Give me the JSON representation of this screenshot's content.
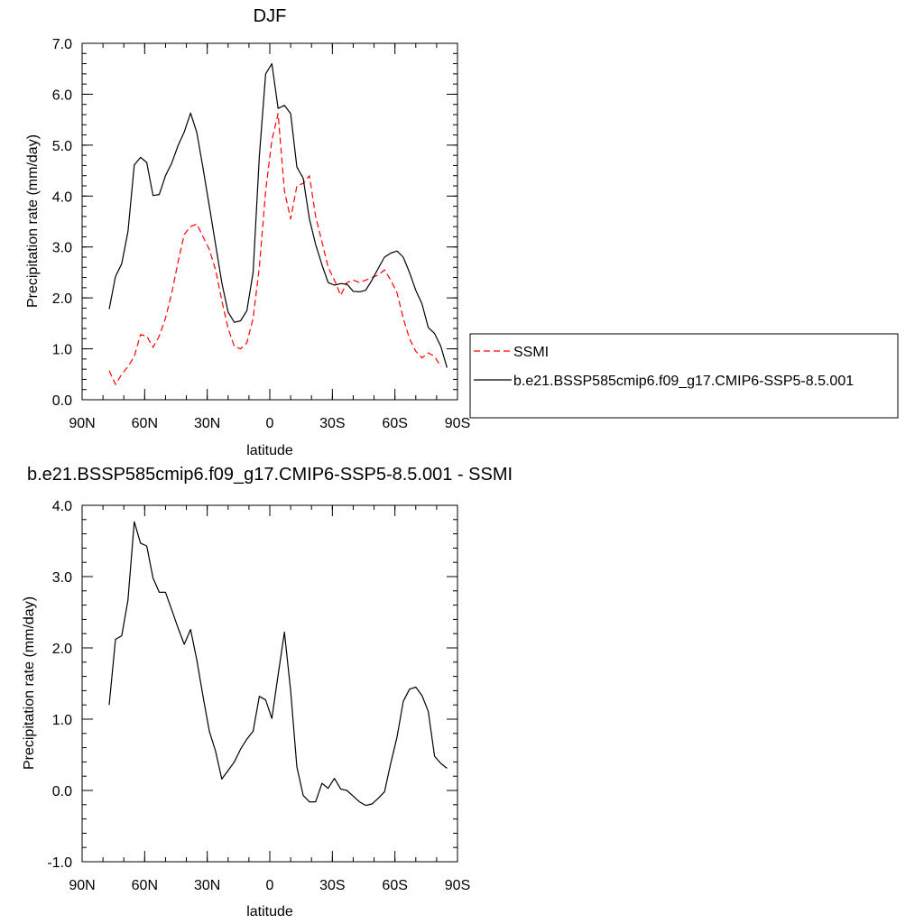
{
  "chart_data": [
    {
      "type": "line",
      "title": "DJF",
      "xlabel": "latitude",
      "ylabel": "Precipitation rate (mm/day)",
      "xlim": [
        90,
        -90
      ],
      "ylim": [
        0.0,
        7.0
      ],
      "x_ticks": [
        90,
        60,
        30,
        0,
        -30,
        -60,
        -90
      ],
      "x_tick_labels": [
        "90N",
        "60N",
        "30N",
        "0",
        "30S",
        "60S",
        "90S"
      ],
      "y_ticks": [
        0,
        1,
        2,
        3,
        4,
        5,
        6,
        7
      ],
      "y_tick_labels": [
        "0.0",
        "1.0",
        "2.0",
        "3.0",
        "4.0",
        "5.0",
        "6.0",
        "7.0"
      ],
      "legend_position": "right",
      "series": [
        {
          "name": "SSMI",
          "color": "#ff0000",
          "dash": "dashed",
          "points": [
            [
              77,
              0.57
            ],
            [
              74,
              0.3
            ],
            [
              71,
              0.5
            ],
            [
              68,
              0.65
            ],
            [
              65,
              0.85
            ],
            [
              62,
              1.28
            ],
            [
              59,
              1.25
            ],
            [
              56,
              1.03
            ],
            [
              53,
              1.25
            ],
            [
              50,
              1.6
            ],
            [
              47,
              2.1
            ],
            [
              44,
              2.7
            ],
            [
              41,
              3.25
            ],
            [
              38,
              3.4
            ],
            [
              35,
              3.45
            ],
            [
              32,
              3.2
            ],
            [
              29,
              2.95
            ],
            [
              26,
              2.55
            ],
            [
              23,
              1.95
            ],
            [
              20,
              1.4
            ],
            [
              17,
              1.05
            ],
            [
              14,
              1.0
            ],
            [
              11,
              1.12
            ],
            [
              8,
              1.6
            ],
            [
              5,
              2.6
            ],
            [
              2,
              4.1
            ],
            [
              -1,
              5.1
            ],
            [
              -4,
              5.62
            ],
            [
              -7,
              4.1
            ],
            [
              -10,
              3.55
            ],
            [
              -13,
              4.2
            ],
            [
              -16,
              4.25
            ],
            [
              -19,
              4.4
            ],
            [
              -22,
              3.6
            ],
            [
              -25,
              3.1
            ],
            [
              -28,
              2.6
            ],
            [
              -31,
              2.35
            ],
            [
              -34,
              2.05
            ],
            [
              -37,
              2.3
            ],
            [
              -40,
              2.35
            ],
            [
              -43,
              2.3
            ],
            [
              -46,
              2.35
            ],
            [
              -49,
              2.4
            ],
            [
              -52,
              2.45
            ],
            [
              -55,
              2.55
            ],
            [
              -58,
              2.35
            ],
            [
              -61,
              2.1
            ],
            [
              -64,
              1.6
            ],
            [
              -67,
              1.2
            ],
            [
              -70,
              0.95
            ],
            [
              -73,
              0.82
            ],
            [
              -76,
              0.92
            ],
            [
              -79,
              0.85
            ],
            [
              -82,
              0.65
            ]
          ]
        },
        {
          "name": "b.e21.BSSP585cmip6.f09_g17.CMIP6-SSP5-8.5.001",
          "color": "#000000",
          "dash": "solid",
          "points": [
            [
              77,
              1.78
            ],
            [
              74,
              2.42
            ],
            [
              71,
              2.67
            ],
            [
              68,
              3.3
            ],
            [
              65,
              4.61
            ],
            [
              62,
              4.76
            ],
            [
              59,
              4.66
            ],
            [
              56,
              4.01
            ],
            [
              53,
              4.03
            ],
            [
              50,
              4.4
            ],
            [
              47,
              4.65
            ],
            [
              44,
              4.99
            ],
            [
              41,
              5.26
            ],
            [
              38,
              5.63
            ],
            [
              35,
              5.25
            ],
            [
              32,
              4.55
            ],
            [
              29,
              3.8
            ],
            [
              26,
              3.05
            ],
            [
              23,
              2.3
            ],
            [
              20,
              1.72
            ],
            [
              17,
              1.52
            ],
            [
              14,
              1.55
            ],
            [
              11,
              1.75
            ],
            [
              8,
              2.5
            ],
            [
              5,
              4.78
            ],
            [
              2,
              6.4
            ],
            [
              -1,
              6.6
            ],
            [
              -4,
              5.72
            ],
            [
              -7,
              5.78
            ],
            [
              -10,
              5.62
            ],
            [
              -13,
              4.57
            ],
            [
              -16,
              4.35
            ],
            [
              -19,
              3.55
            ],
            [
              -22,
              3.05
            ],
            [
              -25,
              2.65
            ],
            [
              -28,
              2.3
            ],
            [
              -31,
              2.25
            ],
            [
              -34,
              2.28
            ],
            [
              -37,
              2.27
            ],
            [
              -40,
              2.13
            ],
            [
              -43,
              2.12
            ],
            [
              -46,
              2.15
            ],
            [
              -49,
              2.35
            ],
            [
              -52,
              2.58
            ],
            [
              -55,
              2.8
            ],
            [
              -58,
              2.88
            ],
            [
              -61,
              2.92
            ],
            [
              -64,
              2.8
            ],
            [
              -67,
              2.5
            ],
            [
              -70,
              2.15
            ],
            [
              -73,
              1.88
            ],
            [
              -76,
              1.42
            ],
            [
              -79,
              1.3
            ],
            [
              -82,
              1.05
            ],
            [
              -85,
              0.63
            ]
          ]
        }
      ]
    },
    {
      "type": "line",
      "title": "b.e21.BSSP585cmip6.f09_g17.CMIP6-SSP5-8.5.001 - SSMI",
      "xlabel": "latitude",
      "ylabel": "Precipitation rate (mm/day)",
      "xlim": [
        90,
        -90
      ],
      "ylim": [
        -1.0,
        4.0
      ],
      "x_ticks": [
        90,
        60,
        30,
        0,
        -30,
        -60,
        -90
      ],
      "x_tick_labels": [
        "90N",
        "60N",
        "30N",
        "0",
        "30S",
        "60S",
        "90S"
      ],
      "y_ticks": [
        -1,
        0,
        1,
        2,
        3,
        4
      ],
      "y_tick_labels": [
        "-1.0",
        "0.0",
        "1.0",
        "2.0",
        "3.0",
        "4.0"
      ],
      "series": [
        {
          "color": "#000000",
          "dash": "solid",
          "points": [
            [
              77,
              1.2
            ],
            [
              74,
              2.12
            ],
            [
              71,
              2.17
            ],
            [
              68,
              2.67
            ],
            [
              65,
              3.77
            ],
            [
              62,
              3.47
            ],
            [
              59,
              3.43
            ],
            [
              56,
              2.98
            ],
            [
              53,
              2.78
            ],
            [
              50,
              2.78
            ],
            [
              47,
              2.53
            ],
            [
              44,
              2.28
            ],
            [
              41,
              2.05
            ],
            [
              38,
              2.26
            ],
            [
              35,
              1.83
            ],
            [
              32,
              1.32
            ],
            [
              29,
              0.83
            ],
            [
              26,
              0.55
            ],
            [
              23,
              0.16
            ],
            [
              20,
              0.28
            ],
            [
              17,
              0.4
            ],
            [
              14,
              0.58
            ],
            [
              11,
              0.72
            ],
            [
              8,
              0.83
            ],
            [
              5,
              1.32
            ],
            [
              2,
              1.27
            ],
            [
              -1,
              1.01
            ],
            [
              -4,
              1.62
            ],
            [
              -7,
              2.22
            ],
            [
              -10,
              1.4
            ],
            [
              -13,
              0.33
            ],
            [
              -16,
              -0.07
            ],
            [
              -19,
              -0.16
            ],
            [
              -22,
              -0.16
            ],
            [
              -25,
              0.1
            ],
            [
              -28,
              0.03
            ],
            [
              -31,
              0.17
            ],
            [
              -34,
              0.02
            ],
            [
              -37,
              0.0
            ],
            [
              -40,
              -0.08
            ],
            [
              -43,
              -0.16
            ],
            [
              -46,
              -0.21
            ],
            [
              -49,
              -0.19
            ],
            [
              -52,
              -0.11
            ],
            [
              -55,
              -0.02
            ],
            [
              -58,
              0.38
            ],
            [
              -61,
              0.75
            ],
            [
              -64,
              1.25
            ],
            [
              -67,
              1.42
            ],
            [
              -70,
              1.45
            ],
            [
              -73,
              1.33
            ],
            [
              -76,
              1.11
            ],
            [
              -79,
              0.48
            ],
            [
              -82,
              0.38
            ],
            [
              -85,
              0.31
            ]
          ]
        }
      ]
    }
  ]
}
